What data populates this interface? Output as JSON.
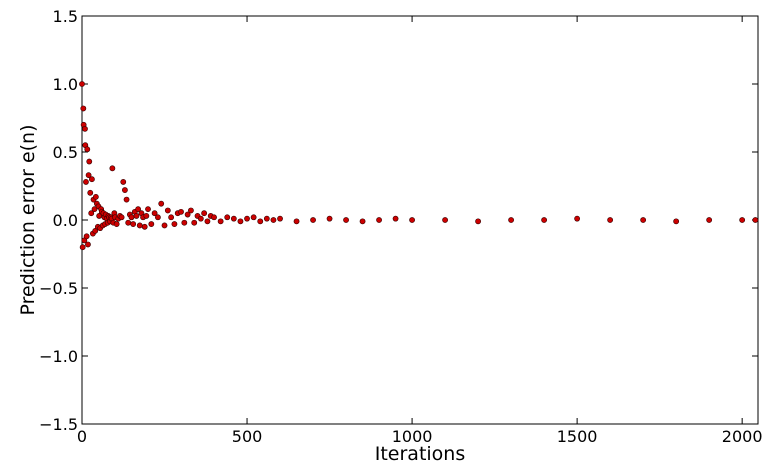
{
  "chart_data": {
    "type": "scatter",
    "title": "",
    "xlabel": "Iterations",
    "ylabel": "Prediction error e(n)",
    "xlim": [
      0,
      2048
    ],
    "ylim": [
      -1.5,
      1.5
    ],
    "xticks": [
      0,
      500,
      1000,
      1500,
      2000
    ],
    "xtick_labels": [
      "0",
      "500",
      "1000",
      "1500",
      "2000"
    ],
    "yticks": [
      -1.5,
      -1.0,
      -0.5,
      0.0,
      0.5,
      1.0,
      1.5
    ],
    "ytick_labels": [
      "−1.5",
      "−1.0",
      "−0.5",
      "0.0",
      "0.5",
      "1.0",
      "1.5"
    ],
    "grid": false,
    "marker_color": "#cc0000",
    "marker_edge_color": "#330000",
    "series": [
      {
        "x": [
          0,
          2,
          4,
          5,
          7,
          9,
          10,
          12,
          14,
          16,
          18,
          20,
          22,
          25,
          28,
          30,
          33,
          35,
          38,
          40,
          42,
          45,
          48,
          50,
          52,
          55,
          58,
          60,
          63,
          65,
          68,
          70,
          72,
          75,
          78,
          80,
          82,
          85,
          88,
          90,
          92,
          95,
          98,
          100,
          105,
          110,
          115,
          120,
          125,
          130,
          135,
          140,
          145,
          150,
          155,
          160,
          165,
          170,
          175,
          180,
          185,
          190,
          195,
          200,
          210,
          220,
          230,
          240,
          250,
          260,
          270,
          280,
          290,
          300,
          310,
          320,
          330,
          340,
          350,
          360,
          370,
          380,
          390,
          400,
          420,
          440,
          460,
          480,
          500,
          520,
          540,
          560,
          580,
          600,
          650,
          700,
          750,
          800,
          850,
          900,
          950,
          1000,
          1100,
          1200,
          1300,
          1400,
          1500,
          1600,
          1700,
          1800,
          1900,
          2000,
          2040
        ],
        "y": [
          1.0,
          -0.2,
          0.82,
          0.7,
          -0.15,
          0.67,
          0.55,
          0.28,
          -0.12,
          0.52,
          -0.18,
          0.33,
          0.43,
          0.2,
          0.05,
          0.3,
          -0.1,
          0.15,
          0.08,
          -0.08,
          0.17,
          0.12,
          -0.05,
          0.1,
          0.03,
          -0.06,
          0.08,
          0.06,
          -0.04,
          0.05,
          0.02,
          -0.03,
          0.04,
          0.01,
          -0.02,
          0.03,
          0.02,
          -0.01,
          0.02,
          0.01,
          0.38,
          -0.02,
          0.05,
          0.02,
          -0.03,
          0.01,
          0.03,
          0.02,
          0.28,
          0.22,
          0.15,
          -0.02,
          0.04,
          0.02,
          -0.03,
          0.06,
          0.03,
          0.08,
          -0.04,
          0.05,
          0.02,
          -0.05,
          0.03,
          0.08,
          -0.03,
          0.05,
          0.02,
          0.12,
          -0.04,
          0.07,
          0.02,
          -0.03,
          0.05,
          0.06,
          -0.02,
          0.04,
          0.07,
          -0.02,
          0.03,
          0.01,
          0.05,
          -0.01,
          0.03,
          0.02,
          -0.01,
          0.02,
          0.01,
          -0.01,
          0.01,
          0.02,
          -0.01,
          0.01,
          0.0,
          0.01,
          -0.01,
          0.0,
          0.01,
          0.0,
          -0.01,
          0.0,
          0.01,
          0.0,
          0.0,
          -0.01,
          0.0,
          0.0,
          0.01,
          0.0,
          0.0,
          -0.01,
          0.0,
          0.0,
          0.0
        ]
      }
    ]
  }
}
